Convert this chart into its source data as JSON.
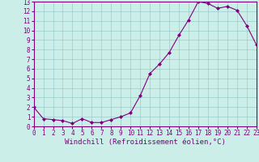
{
  "x": [
    0,
    1,
    2,
    3,
    4,
    5,
    6,
    7,
    8,
    9,
    10,
    11,
    12,
    13,
    14,
    15,
    16,
    17,
    18,
    19,
    20,
    21,
    22,
    23
  ],
  "y": [
    2.0,
    0.8,
    0.7,
    0.6,
    0.3,
    0.8,
    0.4,
    0.4,
    0.7,
    1.0,
    1.4,
    3.2,
    5.5,
    6.5,
    7.7,
    9.5,
    11.1,
    13.0,
    12.8,
    12.3,
    12.5,
    12.1,
    10.5,
    8.5
  ],
  "xlabel": "Windchill (Refroidissement éolien,°C)",
  "xlim": [
    0,
    23
  ],
  "ylim": [
    0,
    13
  ],
  "yticks": [
    0,
    1,
    2,
    3,
    4,
    5,
    6,
    7,
    8,
    9,
    10,
    11,
    12,
    13
  ],
  "xticks": [
    0,
    1,
    2,
    3,
    4,
    5,
    6,
    7,
    8,
    9,
    10,
    11,
    12,
    13,
    14,
    15,
    16,
    17,
    18,
    19,
    20,
    21,
    22,
    23
  ],
  "line_color": "#800080",
  "marker": "D",
  "marker_size": 2.0,
  "bg_color": "#cceee8",
  "grid_color": "#99cccc",
  "xlabel_color": "#800080",
  "xlabel_fontsize": 6.5,
  "tick_fontsize": 5.5,
  "tick_color": "#800080",
  "line_width": 0.8,
  "spine_color": "#800080"
}
